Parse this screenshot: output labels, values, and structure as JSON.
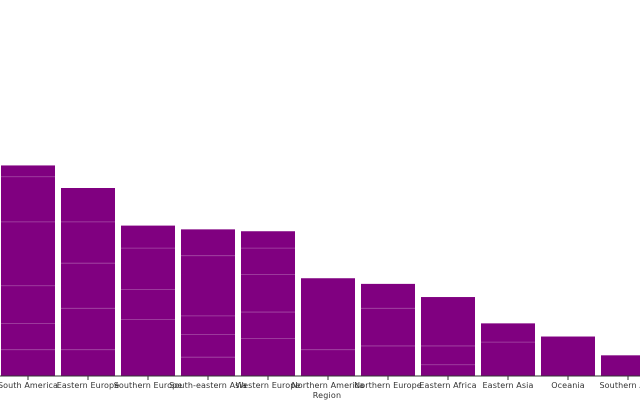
{
  "chart_data": {
    "type": "bar",
    "xlabel": "Region",
    "ylabel": "",
    "ylim": [
      0,
      100
    ],
    "bar_color": "#800080",
    "segment_line_color": "#a64ca6",
    "grid": false,
    "categories": [
      "South America",
      "Eastern Europe",
      "Southern Europe",
      "South-eastern Asia",
      "Western Europe",
      "Northern America",
      "Northern Europe",
      "Eastern Africa",
      "Eastern Asia",
      "Oceania",
      "Southern Asia"
    ],
    "values": [
      56,
      50,
      40,
      39,
      38.5,
      26,
      24.5,
      21,
      14,
      10.5,
      5.5
    ],
    "segments": [
      [
        7,
        7,
        10,
        17,
        12,
        3
      ],
      [
        7,
        11,
        12,
        11,
        9
      ],
      [
        15,
        8,
        11,
        6
      ],
      [
        5,
        6,
        5,
        16,
        7
      ],
      [
        10,
        7,
        10,
        7,
        4.5
      ],
      [
        7,
        19
      ],
      [
        8,
        10,
        6.5
      ],
      [
        3,
        5,
        13
      ],
      [
        9,
        5
      ],
      [
        10.5
      ],
      [
        5.5
      ]
    ]
  }
}
